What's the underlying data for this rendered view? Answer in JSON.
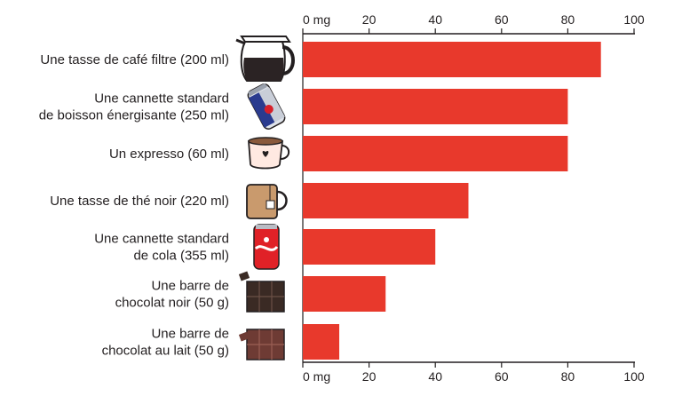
{
  "chart_data": {
    "type": "bar",
    "orientation": "horizontal",
    "title": "",
    "xlabel": "",
    "ylabel": "",
    "unit": "mg",
    "xlim": [
      0,
      100
    ],
    "ticks": [
      0,
      20,
      40,
      60,
      80,
      100
    ],
    "tick_labels": [
      "0 mg",
      "20",
      "40",
      "60",
      "80",
      "100"
    ],
    "axis_position": "top and bottom",
    "bar_color": "#e8392c",
    "grid": false,
    "categories": [
      "Une tasse de café filtre (200 ml)",
      "Une cannette standard de boisson énergisante (250 ml)",
      "Un expresso (60 ml)",
      "Une tasse de thé noir (220 ml)",
      "Une cannette standard de cola (355 ml)",
      "Une barre de chocolat noir (50 g)",
      "Une barre de chocolat au lait (50 g)"
    ],
    "label_lines": [
      [
        "Une tasse de café filtre (200 ml)"
      ],
      [
        "Une cannette standard",
        "de boisson énergisante (250 ml)"
      ],
      [
        "Un expresso (60 ml)"
      ],
      [
        "Une tasse de thé noir (220 ml)"
      ],
      [
        "Une cannette standard",
        "de cola (355 ml)"
      ],
      [
        "Une barre de",
        "chocolat noir (50 g)"
      ],
      [
        "Une barre de",
        "chocolat au lait (50 g)"
      ]
    ],
    "values": [
      90,
      80,
      80,
      50,
      40,
      25,
      11
    ],
    "icons": [
      "coffee-pot-icon",
      "energy-drink-can-icon",
      "espresso-cup-icon",
      "tea-mug-icon",
      "cola-can-icon",
      "dark-chocolate-icon",
      "milk-chocolate-icon"
    ]
  }
}
